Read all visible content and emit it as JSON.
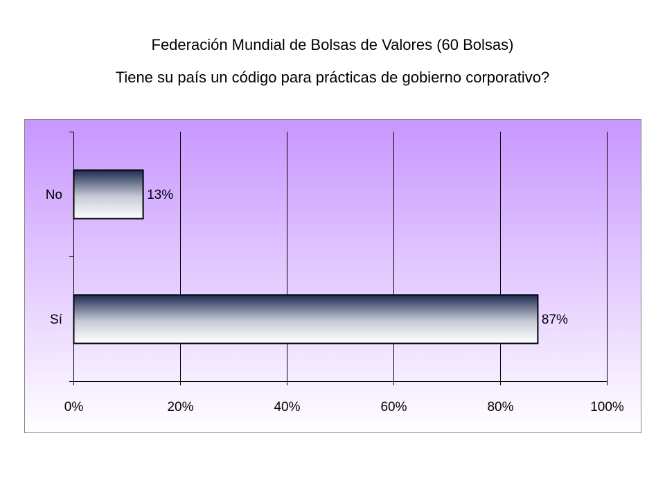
{
  "titles": {
    "line1": "Federación Mundial de Bolsas de Valores (60 Bolsas)",
    "line2": "Tiene su país un código para prácticas de gobierno corporativo?"
  },
  "chart_data": {
    "type": "bar",
    "orientation": "horizontal",
    "categories": [
      "No",
      "Sí"
    ],
    "values": [
      13,
      87
    ],
    "data_labels": [
      "13%",
      "87%"
    ],
    "x_ticks": [
      0,
      20,
      40,
      60,
      80,
      100
    ],
    "x_tick_labels": [
      "0%",
      "20%",
      "40%",
      "60%",
      "80%",
      "100%"
    ],
    "xlim": [
      0,
      100
    ],
    "xlabel": "",
    "ylabel": "",
    "grid": "vertical",
    "legend": "none",
    "colors": {
      "plot_bg_top": "#c896ff",
      "plot_bg_bottom": "#ffffff",
      "bar_top": "#1e2a50",
      "bar_bottom": "#ffffff",
      "bar_border": "#000000",
      "grid": "#000000"
    }
  }
}
